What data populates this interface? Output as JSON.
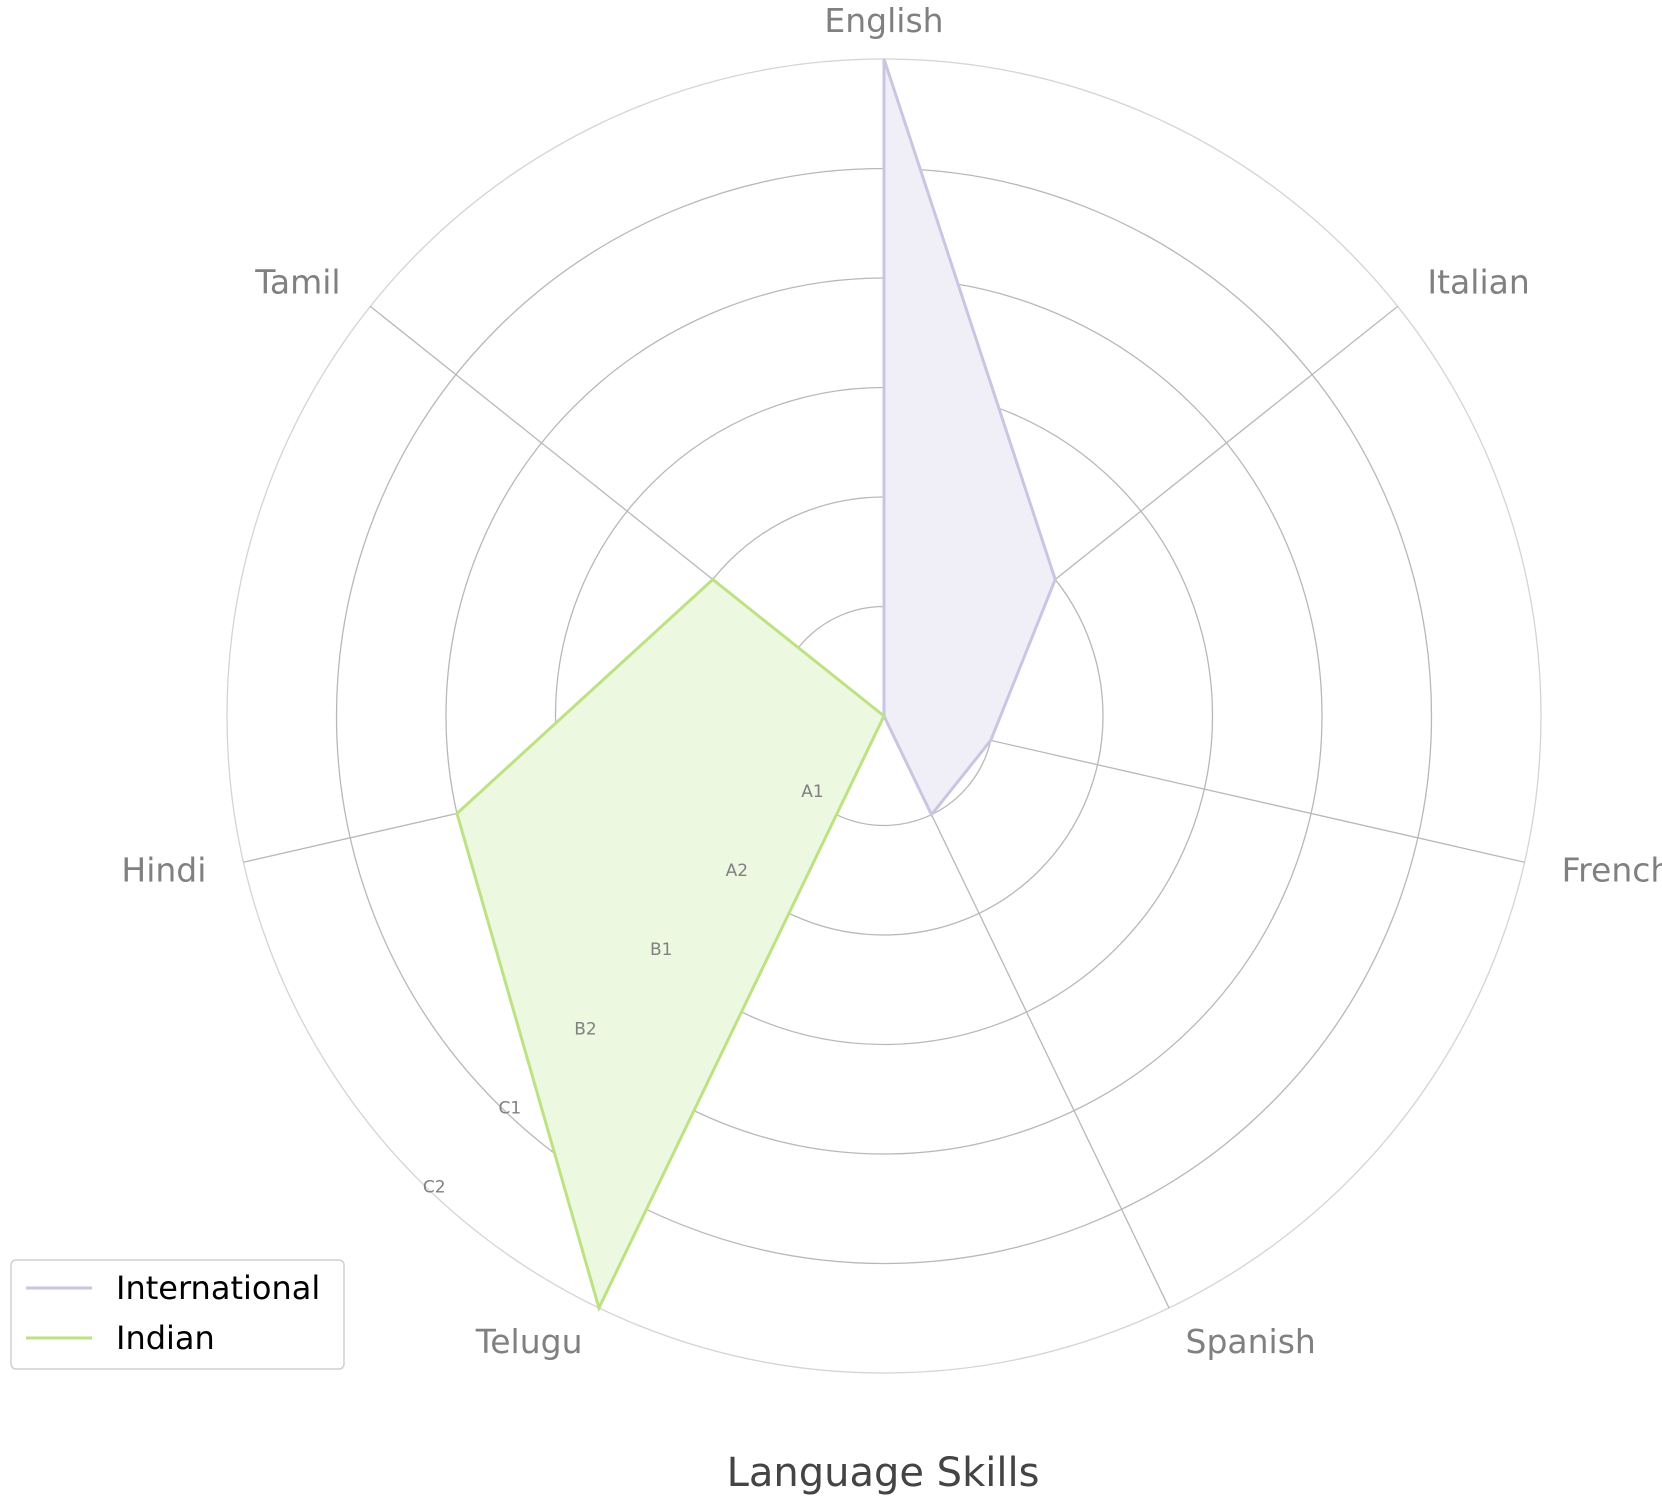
{
  "chart_data": {
    "type": "radar",
    "title": "Language Skills",
    "axes": [
      "English",
      "Italian",
      "French",
      "Spanish",
      "Telugu",
      "Hindi",
      "Tamil"
    ],
    "levels": [
      "A1",
      "A2",
      "B1",
      "B2",
      "C1",
      "C2"
    ],
    "rmax": 6,
    "series": [
      {
        "name": "International",
        "values": [
          6,
          2,
          1,
          1,
          0,
          0,
          0
        ],
        "color": "#c8c6e3",
        "fill": "#f0eff8"
      },
      {
        "name": "Indian",
        "values": [
          0,
          0,
          0,
          0,
          6,
          4,
          2
        ],
        "color": "#bde283",
        "fill": "#edf8e0"
      }
    ],
    "legend_position": "lower-left",
    "grid": true
  }
}
